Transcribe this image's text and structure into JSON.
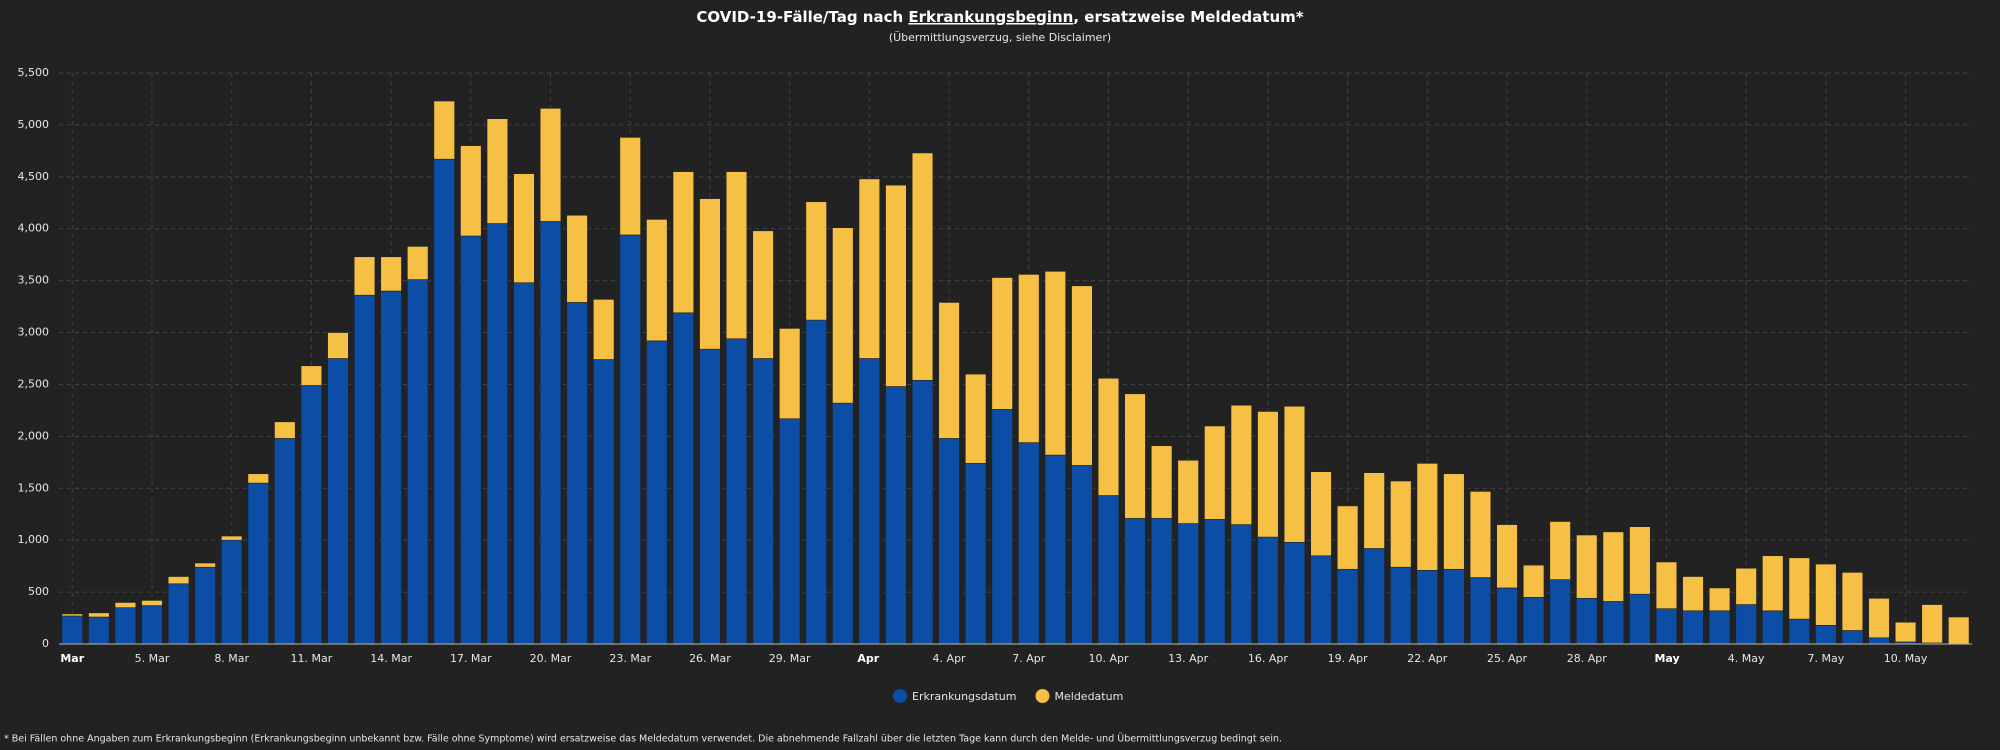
{
  "chart_data": {
    "type": "stacked_bar",
    "title": [
      "COVID-19-Fälle/Tag nach ",
      "Erkrankungsbeginn",
      ", ersatzweise Meldedatum*"
    ],
    "subtitle": "(Übermittlungsverzug, siehe Disclaimer)",
    "footnote": "* Bei Fällen ohne Angaben zum Erkrankungsbeginn (Erkrankungsbeginn unbekannt bzw. Fälle ohne Symptome) wird ersatzweise das Meldedatum verwendet. Die abnehmende Fallzahl über die letzten Tage kann durch den Melde- und Übermittlungsverzug bedingt sein.",
    "categories": [
      "Mar",
      null,
      null,
      "5. Mar",
      null,
      null,
      "8. Mar",
      null,
      null,
      "11. Mar",
      null,
      null,
      "14. Mar",
      null,
      null,
      "17. Mar",
      null,
      null,
      "20. Mar",
      null,
      null,
      "23. Mar",
      null,
      null,
      "26. Mar",
      null,
      null,
      "29. Mar",
      null,
      null,
      "Apr",
      null,
      null,
      "4. Apr",
      null,
      null,
      "7. Apr",
      null,
      null,
      "10. Apr",
      null,
      null,
      "13. Apr",
      null,
      null,
      "16. Apr",
      null,
      null,
      "19. Apr",
      null,
      null,
      "22. Apr",
      null,
      null,
      "25. Apr",
      null,
      null,
      "28. Apr",
      null,
      null,
      "May",
      null,
      null,
      "4. May",
      null,
      null,
      "7. May",
      null,
      null,
      "10. May",
      null,
      null
    ],
    "series": [
      {
        "name": "Erkrankungsdatum",
        "color": "#0c4da6",
        "values": [
          270,
          260,
          350,
          370,
          580,
          740,
          1000,
          1550,
          1980,
          2490,
          2750,
          3360,
          3400,
          3510,
          4670,
          3930,
          4050,
          3480,
          4070,
          3290,
          2740,
          3940,
          2920,
          3190,
          2840,
          2940,
          2750,
          2170,
          3120,
          2320,
          2750,
          2480,
          2540,
          1980,
          1740,
          2260,
          1940,
          1820,
          1720,
          1430,
          1210,
          1210,
          1160,
          1200,
          1150,
          1030,
          980,
          850,
          720,
          920,
          740,
          710,
          720,
          640,
          540,
          450,
          620,
          440,
          410,
          480,
          340,
          320,
          320,
          380,
          320,
          240,
          180,
          130,
          60,
          20,
          10,
          0
        ]
      },
      {
        "name": "Meldedatum",
        "color": "#f6c044",
        "values": [
          20,
          40,
          50,
          50,
          70,
          40,
          40,
          90,
          160,
          190,
          250,
          370,
          330,
          320,
          560,
          870,
          1010,
          1050,
          1090,
          840,
          580,
          940,
          1170,
          1360,
          1450,
          1610,
          1230,
          870,
          1140,
          1690,
          1730,
          1940,
          2190,
          1310,
          860,
          1270,
          1620,
          1770,
          1730,
          1130,
          1200,
          700,
          610,
          900,
          1150,
          1210,
          1310,
          810,
          610,
          730,
          830,
          1030,
          920,
          830,
          610,
          310,
          560,
          610,
          670,
          650,
          450,
          330,
          220,
          350,
          530,
          590,
          590,
          560,
          380,
          190,
          370,
          260
        ]
      }
    ],
    "ylim": [
      0,
      5500
    ],
    "yticks": [
      0,
      500,
      {
        "value": 1000,
        "label": "1,000"
      },
      {
        "value": 1500,
        "label": "1,500"
      },
      {
        "value": 2000,
        "label": "2,000"
      },
      {
        "value": 2500,
        "label": "2,500"
      },
      {
        "value": 3000,
        "label": "3,000"
      },
      {
        "value": 3500,
        "label": "3,500"
      },
      {
        "value": 4000,
        "label": "4,000"
      },
      {
        "value": 4500,
        "label": "4,500"
      },
      {
        "value": 5000,
        "label": "5,000"
      },
      {
        "value": 5500,
        "label": "5,500"
      }
    ],
    "grid": true
  }
}
